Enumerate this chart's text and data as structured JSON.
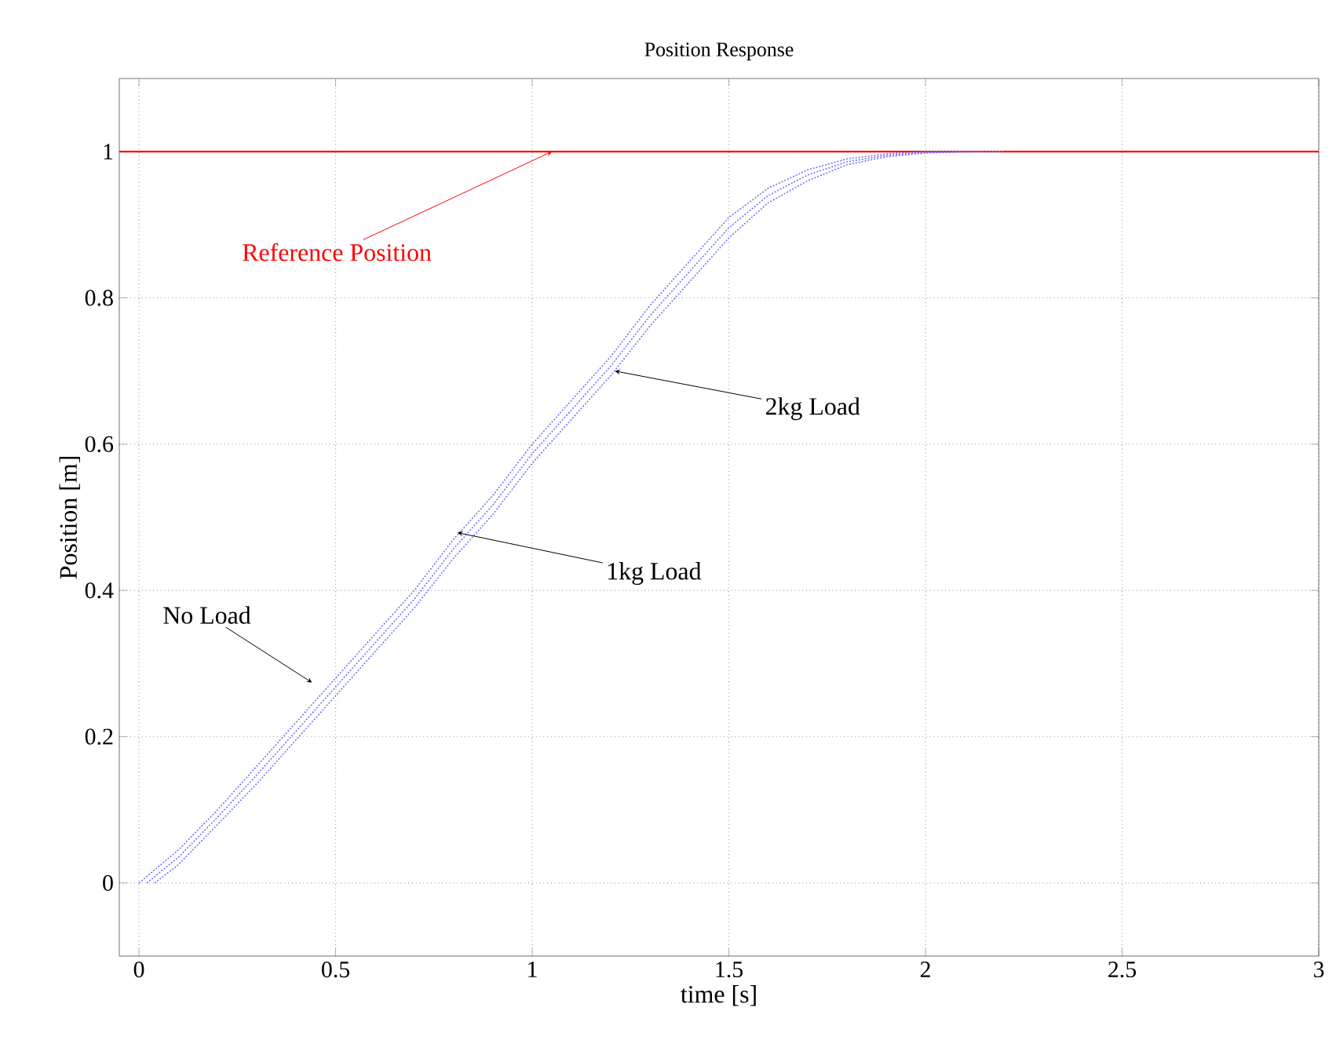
{
  "chart_data": {
    "type": "line",
    "title": "Position Response",
    "xlabel": "time [s]",
    "ylabel": "Position [m]",
    "xlim": [
      -0.05,
      3
    ],
    "ylim": [
      -0.1,
      1.1
    ],
    "xticks": [
      0,
      0.5,
      1,
      1.5,
      2,
      2.5,
      3
    ],
    "yticks": [
      0,
      0.2,
      0.4,
      0.6,
      0.8,
      1
    ],
    "grid": true,
    "marker": "none",
    "ref_lines": [
      {
        "axis": "y",
        "value": 1,
        "color": "#ff0000",
        "line_style": "solid"
      }
    ],
    "series": [
      {
        "color": "#7070ff",
        "line_style": "dotted",
        "x": [
          0,
          0.1,
          0.2,
          0.3,
          0.4,
          0.5,
          0.6,
          0.7,
          0.8,
          0.9,
          1.0,
          1.1,
          1.2,
          1.3,
          1.4,
          1.5,
          1.6,
          1.7,
          1.8,
          1.9,
          2.0,
          2.1
        ],
        "values": [
          0,
          0.045,
          0.1,
          0.16,
          0.22,
          0.28,
          0.34,
          0.4,
          0.47,
          0.53,
          0.6,
          0.66,
          0.72,
          0.79,
          0.85,
          0.91,
          0.95,
          0.975,
          0.99,
          0.997,
          1.0,
          1.0
        ]
      },
      {
        "color": "#7070ff",
        "line_style": "dotted",
        "x": [
          0.02,
          0.1,
          0.2,
          0.3,
          0.4,
          0.5,
          0.6,
          0.7,
          0.8,
          0.9,
          1.0,
          1.1,
          1.2,
          1.3,
          1.4,
          1.5,
          1.6,
          1.7,
          1.8,
          1.9,
          2.0,
          2.15
        ],
        "values": [
          0,
          0.035,
          0.09,
          0.148,
          0.208,
          0.268,
          0.328,
          0.388,
          0.457,
          0.517,
          0.587,
          0.647,
          0.707,
          0.776,
          0.836,
          0.896,
          0.94,
          0.968,
          0.986,
          0.995,
          0.999,
          1.0
        ]
      },
      {
        "color": "#7070ff",
        "line_style": "dotted",
        "x": [
          0.04,
          0.1,
          0.2,
          0.3,
          0.4,
          0.5,
          0.6,
          0.7,
          0.8,
          0.9,
          1.0,
          1.1,
          1.2,
          1.3,
          1.4,
          1.5,
          1.6,
          1.7,
          1.8,
          1.9,
          2.0,
          2.1,
          2.2
        ],
        "values": [
          0,
          0.025,
          0.08,
          0.136,
          0.196,
          0.256,
          0.316,
          0.376,
          0.444,
          0.504,
          0.574,
          0.634,
          0.694,
          0.762,
          0.822,
          0.882,
          0.93,
          0.96,
          0.982,
          0.993,
          0.998,
          1.0,
          1.0
        ]
      }
    ],
    "annotations": [
      {
        "text": "Reference Position",
        "x": 1.05,
        "y": 1.0
      },
      {
        "text": "2kg Load",
        "x": 1.21,
        "y": 0.7
      },
      {
        "text": "1kg Load",
        "x": 0.81,
        "y": 0.479
      },
      {
        "text": "No Load",
        "x": 0.44,
        "y": 0.274
      }
    ]
  }
}
